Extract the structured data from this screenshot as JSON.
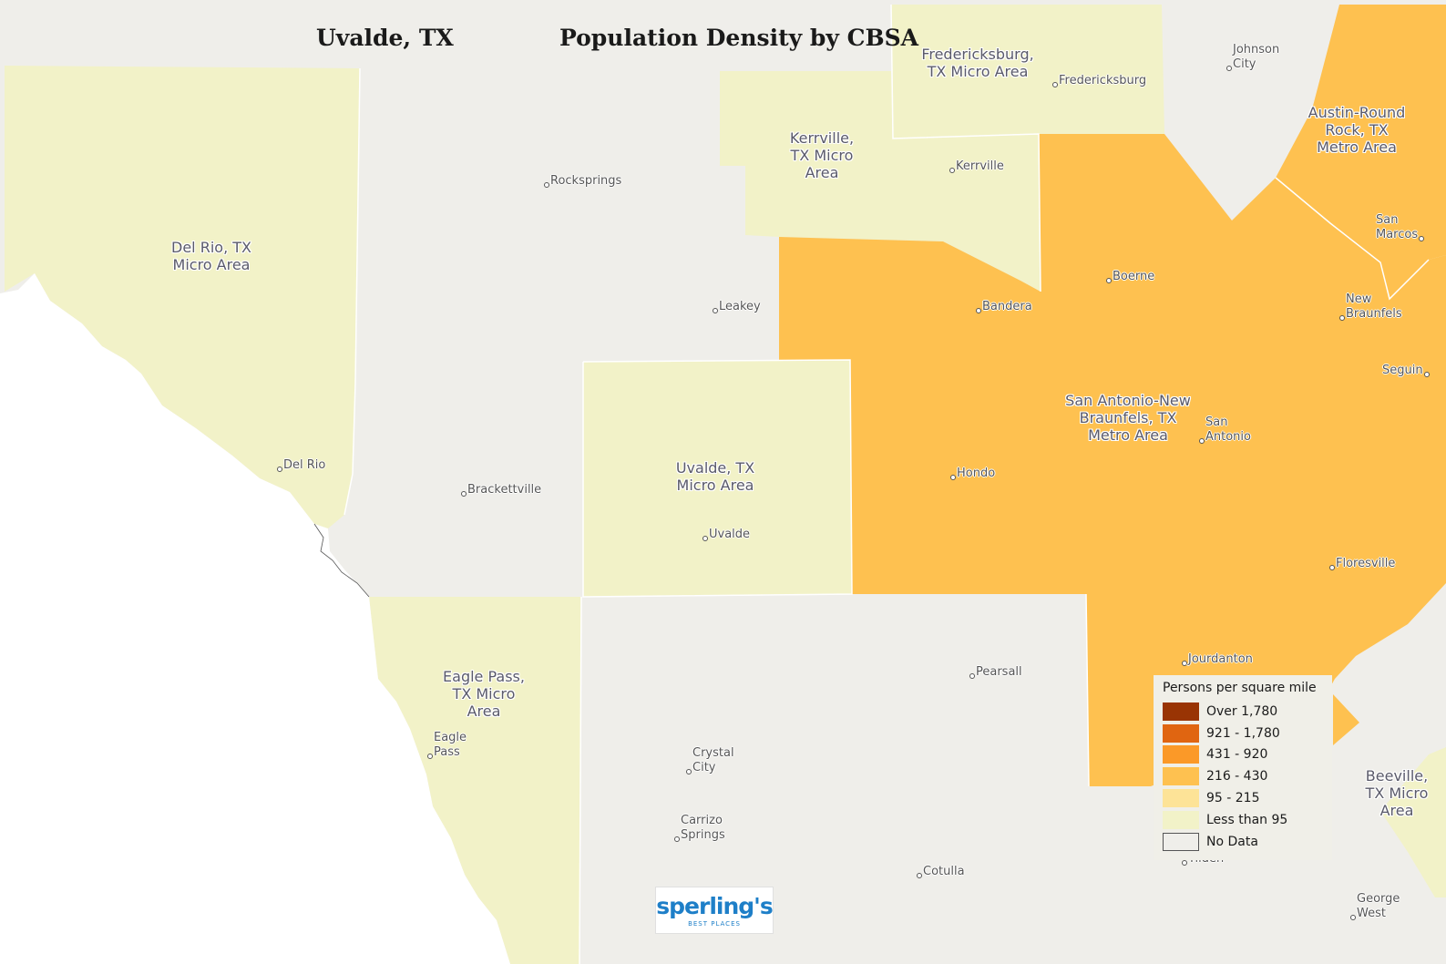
{
  "title": {
    "location": "Uvalde, TX",
    "subtitle": "Population Density by CBSA"
  },
  "colors": {
    "no_data": "#efeeea",
    "less_than_95": "#f2f2c8",
    "d95_215": "#fde397",
    "d216_430": "#fec150",
    "d431_920": "#fb9928",
    "d921_1780": "#e06511",
    "over_1780": "#993404",
    "water": "#ffffff"
  },
  "regions": [
    {
      "id": "del-rio",
      "label": "Del Rio, TX\nMicro Area",
      "density_class": "Less than 95"
    },
    {
      "id": "fredericksburg",
      "label": "Fredericksburg,\nTX Micro Area",
      "density_class": "Less than 95"
    },
    {
      "id": "kerrville",
      "label": "Kerrville,\nTX Micro\nArea",
      "density_class": "Less than 95"
    },
    {
      "id": "uvalde",
      "label": "Uvalde, TX\nMicro Area",
      "density_class": "Less than 95"
    },
    {
      "id": "eagle-pass",
      "label": "Eagle Pass,\nTX Micro\nArea",
      "density_class": "Less than 95"
    },
    {
      "id": "beeville",
      "label": "Beeville,\nTX Micro\nArea",
      "density_class": "Less than 95"
    },
    {
      "id": "san-antonio",
      "label": "San Antonio-New\nBraunfels, TX\nMetro Area",
      "density_class": "216 - 430"
    },
    {
      "id": "austin",
      "label": "Austin-Round\nRock, TX\nMetro Area",
      "density_class": "216 - 430"
    }
  ],
  "cities": [
    "Johnson\nCity",
    "Fredericksburg",
    "Kerrville",
    "Rocksprings",
    "San\nMarcos",
    "Boerne",
    "Bandera",
    "Leakey",
    "New\nBraunfels",
    "Seguin",
    "San\nAntonio",
    "Hondo",
    "Del Rio",
    "Brackettville",
    "Uvalde",
    "Floresville",
    "Jourdanton",
    "Pearsall",
    "Eagle\nPass",
    "Crystal\nCity",
    "Carrizo\nSprings",
    "Cotulla",
    "Tilden",
    "George\nWest"
  ],
  "legend": {
    "title": "Persons per square mile",
    "items": [
      {
        "label": "Over 1,780",
        "color": "#993404"
      },
      {
        "label": "921 - 1,780",
        "color": "#e06511"
      },
      {
        "label": "431 - 920",
        "color": "#fb9928"
      },
      {
        "label": "216 - 430",
        "color": "#fec150"
      },
      {
        "label": "95 - 215",
        "color": "#fde397"
      },
      {
        "label": "Less than 95",
        "color": "#f2f2c8"
      },
      {
        "label": "No Data",
        "color": "#efeeea"
      }
    ]
  },
  "logo": {
    "main": "sperling's",
    "sub": "BEST PLACES"
  }
}
